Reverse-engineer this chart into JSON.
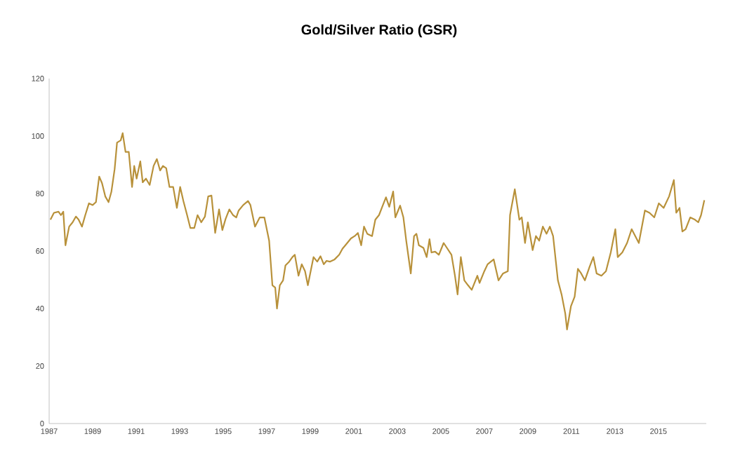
{
  "chart_data": {
    "type": "line",
    "title": "Gold/Silver Ratio (GSR)",
    "x": [
      1987.06,
      1987.22,
      1987.43,
      1987.54,
      1987.65,
      1987.75,
      1987.92,
      1988.08,
      1988.23,
      1988.35,
      1988.51,
      1988.66,
      1988.83,
      1989.0,
      1989.15,
      1989.3,
      1989.43,
      1989.58,
      1989.73,
      1989.86,
      1990.01,
      1990.12,
      1990.29,
      1990.38,
      1990.51,
      1990.66,
      1990.81,
      1990.91,
      1991.02,
      1991.19,
      1991.3,
      1991.45,
      1991.62,
      1991.8,
      1991.95,
      1992.1,
      1992.23,
      1992.38,
      1992.53,
      1992.7,
      1992.87,
      1993.02,
      1993.17,
      1993.34,
      1993.49,
      1993.67,
      1993.82,
      1993.99,
      1994.16,
      1994.31,
      1994.46,
      1994.63,
      1994.81,
      1994.96,
      1995.11,
      1995.28,
      1995.45,
      1995.6,
      1995.71,
      1995.92,
      1996.14,
      1996.25,
      1996.46,
      1996.68,
      1996.89,
      1997.11,
      1997.26,
      1997.39,
      1997.47,
      1997.6,
      1997.75,
      1997.86,
      1998.03,
      1998.18,
      1998.29,
      1998.46,
      1998.61,
      1998.76,
      1998.89,
      1999.04,
      1999.15,
      1999.32,
      1999.47,
      1999.62,
      1999.75,
      1999.9,
      2000.12,
      2000.33,
      2000.48,
      2000.7,
      2000.87,
      2001.04,
      2001.19,
      2001.34,
      2001.47,
      2001.62,
      2001.84,
      2001.99,
      2002.16,
      2002.33,
      2002.48,
      2002.63,
      2002.81,
      2002.91,
      2003.13,
      2003.28,
      2003.41,
      2003.62,
      2003.77,
      2003.88,
      2003.99,
      2004.2,
      2004.35,
      2004.48,
      2004.57,
      2004.74,
      2004.91,
      2005.13,
      2005.28,
      2005.49,
      2005.65,
      2005.77,
      2005.92,
      2006.08,
      2006.25,
      2006.42,
      2006.68,
      2006.78,
      2007.0,
      2007.15,
      2007.43,
      2007.65,
      2007.86,
      2008.08,
      2008.18,
      2008.4,
      2008.61,
      2008.72,
      2008.87,
      2009.0,
      2009.22,
      2009.37,
      2009.52,
      2009.69,
      2009.86,
      2010.01,
      2010.16,
      2010.38,
      2010.55,
      2010.72,
      2010.8,
      2010.98,
      2011.15,
      2011.3,
      2011.45,
      2011.62,
      2011.84,
      2012.01,
      2012.16,
      2012.38,
      2012.59,
      2012.81,
      2013.02,
      2013.13,
      2013.34,
      2013.56,
      2013.77,
      2014.1,
      2014.38,
      2014.59,
      2014.81,
      2015.02,
      2015.24,
      2015.49,
      2015.71,
      2015.82,
      2015.97,
      2016.1,
      2016.25,
      2016.46,
      2016.68,
      2016.83,
      2016.96,
      2017.11
    ],
    "values": [
      70.9,
      73.3,
      73.7,
      72.5,
      73.7,
      62,
      68.5,
      70,
      72,
      71,
      68.5,
      72.5,
      76.6,
      76,
      77,
      85.9,
      83.6,
      79,
      77,
      80.6,
      88.5,
      97.7,
      98.5,
      101,
      94.5,
      94.5,
      82.3,
      89.6,
      85.2,
      91.2,
      83.9,
      85.2,
      83,
      89.6,
      92,
      88,
      89.6,
      88.8,
      82.3,
      82.3,
      75,
      82.3,
      77.4,
      72.5,
      68,
      68,
      72.5,
      70,
      72,
      79,
      79.3,
      66.3,
      74.5,
      67.3,
      71.2,
      74.5,
      72.5,
      71.7,
      74.1,
      76,
      77.4,
      76,
      68.5,
      71.7,
      71.7,
      63.6,
      48.1,
      47.3,
      40,
      48.1,
      49.8,
      55,
      56.3,
      57.9,
      58.7,
      51.4,
      55.4,
      53,
      48.1,
      53.8,
      57.9,
      56.3,
      58.2,
      55.4,
      56.6,
      56.3,
      57.1,
      58.7,
      60.8,
      62.8,
      64.4,
      65.2,
      66.3,
      62,
      68.5,
      66,
      65.2,
      70.9,
      72.5,
      75.8,
      78.7,
      75.4,
      80.7,
      71.7,
      75.8,
      71.7,
      63.6,
      52.2,
      65.2,
      66,
      62,
      61.1,
      57.9,
      64.1,
      59.5,
      59.8,
      58.7,
      62.8,
      61.1,
      58.7,
      51.4,
      44.9,
      57.9,
      49.8,
      48.1,
      46.5,
      51.4,
      48.9,
      53,
      55.4,
      57.1,
      49.8,
      52.2,
      53,
      72.5,
      81.5,
      70.9,
      71.7,
      62.8,
      70,
      60.3,
      65.2,
      63.6,
      68.5,
      66,
      68.5,
      65.2,
      49.8,
      44.9,
      38.2,
      32.7,
      40.8,
      44.1,
      53.8,
      52.2,
      49.8,
      54.6,
      57.9,
      52.2,
      51.4,
      53,
      59.5,
      67.6,
      57.9,
      59.5,
      62.8,
      67.6,
      62.8,
      74.1,
      73.3,
      71.7,
      76.6,
      75,
      79,
      84.7,
      73.3,
      75,
      66.8,
      67.6,
      71.7,
      70.9,
      70,
      72.5,
      77.7
    ],
    "color": "#b8913a",
    "xlim": [
      1987,
      2017.2
    ],
    "xticks": [
      1987,
      1989,
      1991,
      1993,
      1995,
      1997,
      1999,
      2001,
      2003,
      2005,
      2007,
      2009,
      2011,
      2013,
      2015
    ],
    "ylim": [
      0,
      120
    ],
    "yticks": [
      0,
      20,
      40,
      60,
      80,
      100,
      120
    ]
  }
}
